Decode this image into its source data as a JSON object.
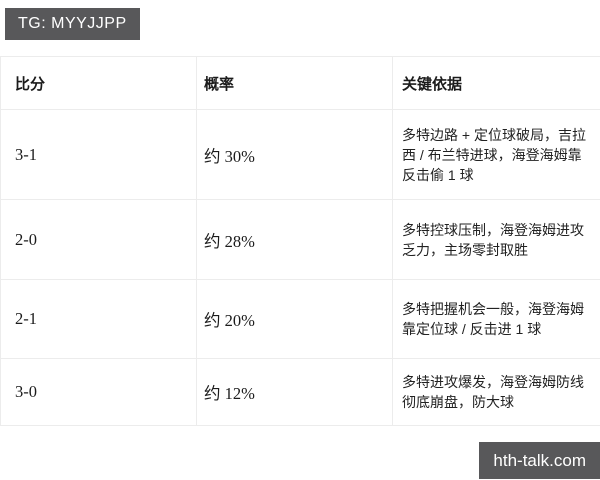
{
  "badge": {
    "label": "TG: MYYJJPP"
  },
  "watermark": {
    "label": "hth-talk.com"
  },
  "table": {
    "headers": [
      "比分",
      "概率",
      "关键依据"
    ],
    "rows": [
      {
        "score": "3-1",
        "probability": "约 30%",
        "basis": "多特边路 + 定位球破局，吉拉西 / 布兰特进球，海登海姆靠反击偷 1 球"
      },
      {
        "score": "2-0",
        "probability": "约 28%",
        "basis": "多特控球压制，海登海姆进攻乏力，主场零封取胜"
      },
      {
        "score": "2-1",
        "probability": "约 20%",
        "basis": "多特把握机会一般，海登海姆靠定位球 / 反击进 1 球"
      },
      {
        "score": "3-0",
        "probability": "约 12%",
        "basis": "多特进攻爆发，海登海姆防线彻底崩盘，防大球"
      }
    ]
  },
  "colors": {
    "badge_bg": "#58585a",
    "badge_text": "#ffffff",
    "table_border": "#ececec",
    "text_primary": "#1b1b1b",
    "text_secondary": "#222222",
    "page_bg": "#ffffff"
  }
}
